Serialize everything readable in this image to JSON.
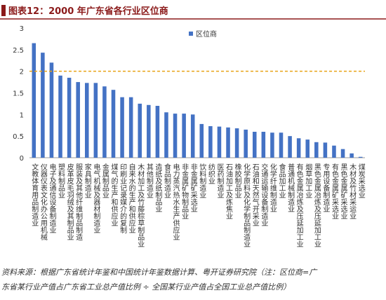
{
  "chart_data": {
    "type": "bar",
    "title": "图表12：2000 年广东省各行业区位商",
    "categories": [
      "文教体育用品制造业",
      "仪器仪表文化办公用机械",
      "电子及通信设备制造业",
      "塑料制品业",
      "皮革皮毛羽绒及其制品业",
      "服装及其他纤维制品制造",
      "家具制造业",
      "电气机械及器材制造业",
      "金属制品业",
      "煤气的生产和供应业",
      "印刷业记录媒介的复制",
      "自来水的生产和供应业",
      "木材加工及竹藤棕草制品业",
      "其他制造业",
      "造纸及纸制品业",
      "食品制造业",
      "电力蒸汽热水生产供应业",
      "非金属矿物制品业",
      "非金属矿采选业",
      "饮料制造业",
      "纺织业",
      "医药制造业",
      "石油加工及炼焦业",
      "橡胶制品业",
      "化学原料及化学制品制造业",
      "石油和天然气开采业",
      "交通运输设备制造业",
      "化学纤维制造业",
      "食品加工业",
      "普通机械制造业",
      "有色金属冶炼及压延加工业",
      "烟草加工业",
      "黑色金属冶炼及压延加工业",
      "专用设备制造业",
      "有色金属矿采选业",
      "黑色金属矿采选业",
      "木材及竹材采运业",
      "煤炭采选业"
    ],
    "series": [
      {
        "name": "区位商",
        "color": "#4472c4",
        "values": [
          2.65,
          2.43,
          2.2,
          1.9,
          1.85,
          1.75,
          1.73,
          1.73,
          1.65,
          1.57,
          1.4,
          1.4,
          1.25,
          1.22,
          1.2,
          1.05,
          1.02,
          1.02,
          1.0,
          0.78,
          0.73,
          0.72,
          0.7,
          0.68,
          0.65,
          0.6,
          0.6,
          0.58,
          0.58,
          0.5,
          0.45,
          0.42,
          0.36,
          0.35,
          0.28,
          0.2,
          0.1,
          0.02
        ]
      }
    ],
    "ylim": [
      0,
      3
    ],
    "yticks": [
      0,
      0.5,
      1,
      1.5,
      2,
      2.5,
      3
    ],
    "reference_line": {
      "value": 2,
      "color": "#e8a317"
    },
    "source": [
      "资料来源：根据广东省统计年鉴和中国统计年鉴数据计算、粤开证券研究院（注：区位商=广",
      "东省某行业产值占广东省工业总产值比例 ÷ 全国某行业产值占全国工业总产值比例）"
    ]
  }
}
